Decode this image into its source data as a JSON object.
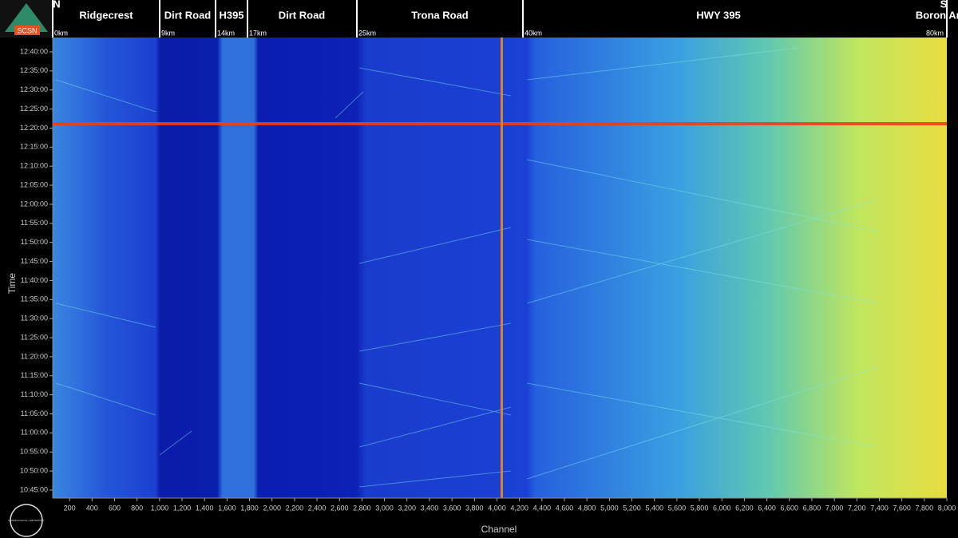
{
  "logo": "SCSN",
  "seal": "SEISMOLOGICAL LABORATORY",
  "chart_data": {
    "type": "heatmap",
    "direction_labels": [
      "N",
      "S"
    ],
    "segments": [
      "Ridgecrest",
      "Dirt Road",
      "H395",
      "Dirt Road",
      "Trona Road",
      "HWY 395",
      "Boron Area"
    ],
    "distance_marks": [
      "0km",
      "9km",
      "14km",
      "17km",
      "25km",
      "40km",
      "80km"
    ],
    "x_label": "Channel",
    "y_label": "Time",
    "xlim": [
      50,
      8000
    ],
    "xticks": [
      200,
      400,
      600,
      800,
      {
        "value": 1000,
        "label": "1,000"
      },
      {
        "value": 1200,
        "label": "1,200"
      },
      {
        "value": 1400,
        "label": "1,400"
      },
      {
        "value": 1600,
        "label": "1,600"
      },
      {
        "value": 1800,
        "label": "1,800"
      },
      {
        "value": 2000,
        "label": "2,000"
      },
      {
        "value": 2200,
        "label": "2,200"
      },
      {
        "value": 2400,
        "label": "2,400"
      },
      {
        "value": 2600,
        "label": "2,600"
      },
      {
        "value": 2800,
        "label": "2,800"
      },
      {
        "value": 3000,
        "label": "3,000"
      },
      {
        "value": 3200,
        "label": "3,200"
      },
      {
        "value": 3400,
        "label": "3,400"
      },
      {
        "value": 3600,
        "label": "3,600"
      },
      {
        "value": 3800,
        "label": "3,800"
      },
      {
        "value": 4000,
        "label": "4,000"
      },
      {
        "value": 4200,
        "label": "4,200"
      },
      {
        "value": 4400,
        "label": "4,400"
      },
      {
        "value": 4600,
        "label": "4,600"
      },
      {
        "value": 4800,
        "label": "4,800"
      },
      {
        "value": 5000,
        "label": "5,000"
      },
      {
        "value": 5200,
        "label": "5,200"
      },
      {
        "value": 5400,
        "label": "5,400"
      },
      {
        "value": 5600,
        "label": "5,600"
      },
      {
        "value": 5800,
        "label": "5,800"
      },
      {
        "value": 6000,
        "label": "6,000"
      },
      {
        "value": 6200,
        "label": "6,200"
      },
      {
        "value": 6400,
        "label": "6,400"
      },
      {
        "value": 6600,
        "label": "6,600"
      },
      {
        "value": 6800,
        "label": "6,800"
      },
      {
        "value": 7000,
        "label": "7,000"
      },
      {
        "value": 7200,
        "label": "7,200"
      },
      {
        "value": 7400,
        "label": "7,400"
      },
      {
        "value": 7600,
        "label": "7,600"
      },
      {
        "value": 7800,
        "label": "7,800"
      },
      {
        "value": 8000,
        "label": "8,000"
      }
    ],
    "ylim": [
      "10:42:54",
      "12:43:46"
    ],
    "yticks": [
      "12:40:00",
      "12:35:00",
      "12:30:00",
      "12:25:00",
      "12:20:00",
      "12:15:00",
      "12:10:00",
      "12:05:00",
      "12:00:00",
      "11:55:00",
      "11:50:00",
      "11:45:00",
      "11:40:00",
      "11:35:00",
      "11:30:00",
      "11:25:00",
      "11:20:00",
      "11:15:00",
      "11:10:00",
      "11:05:00",
      "11:00:00",
      "10:55:00",
      "10:50:00",
      "10:45:00"
    ]
  }
}
